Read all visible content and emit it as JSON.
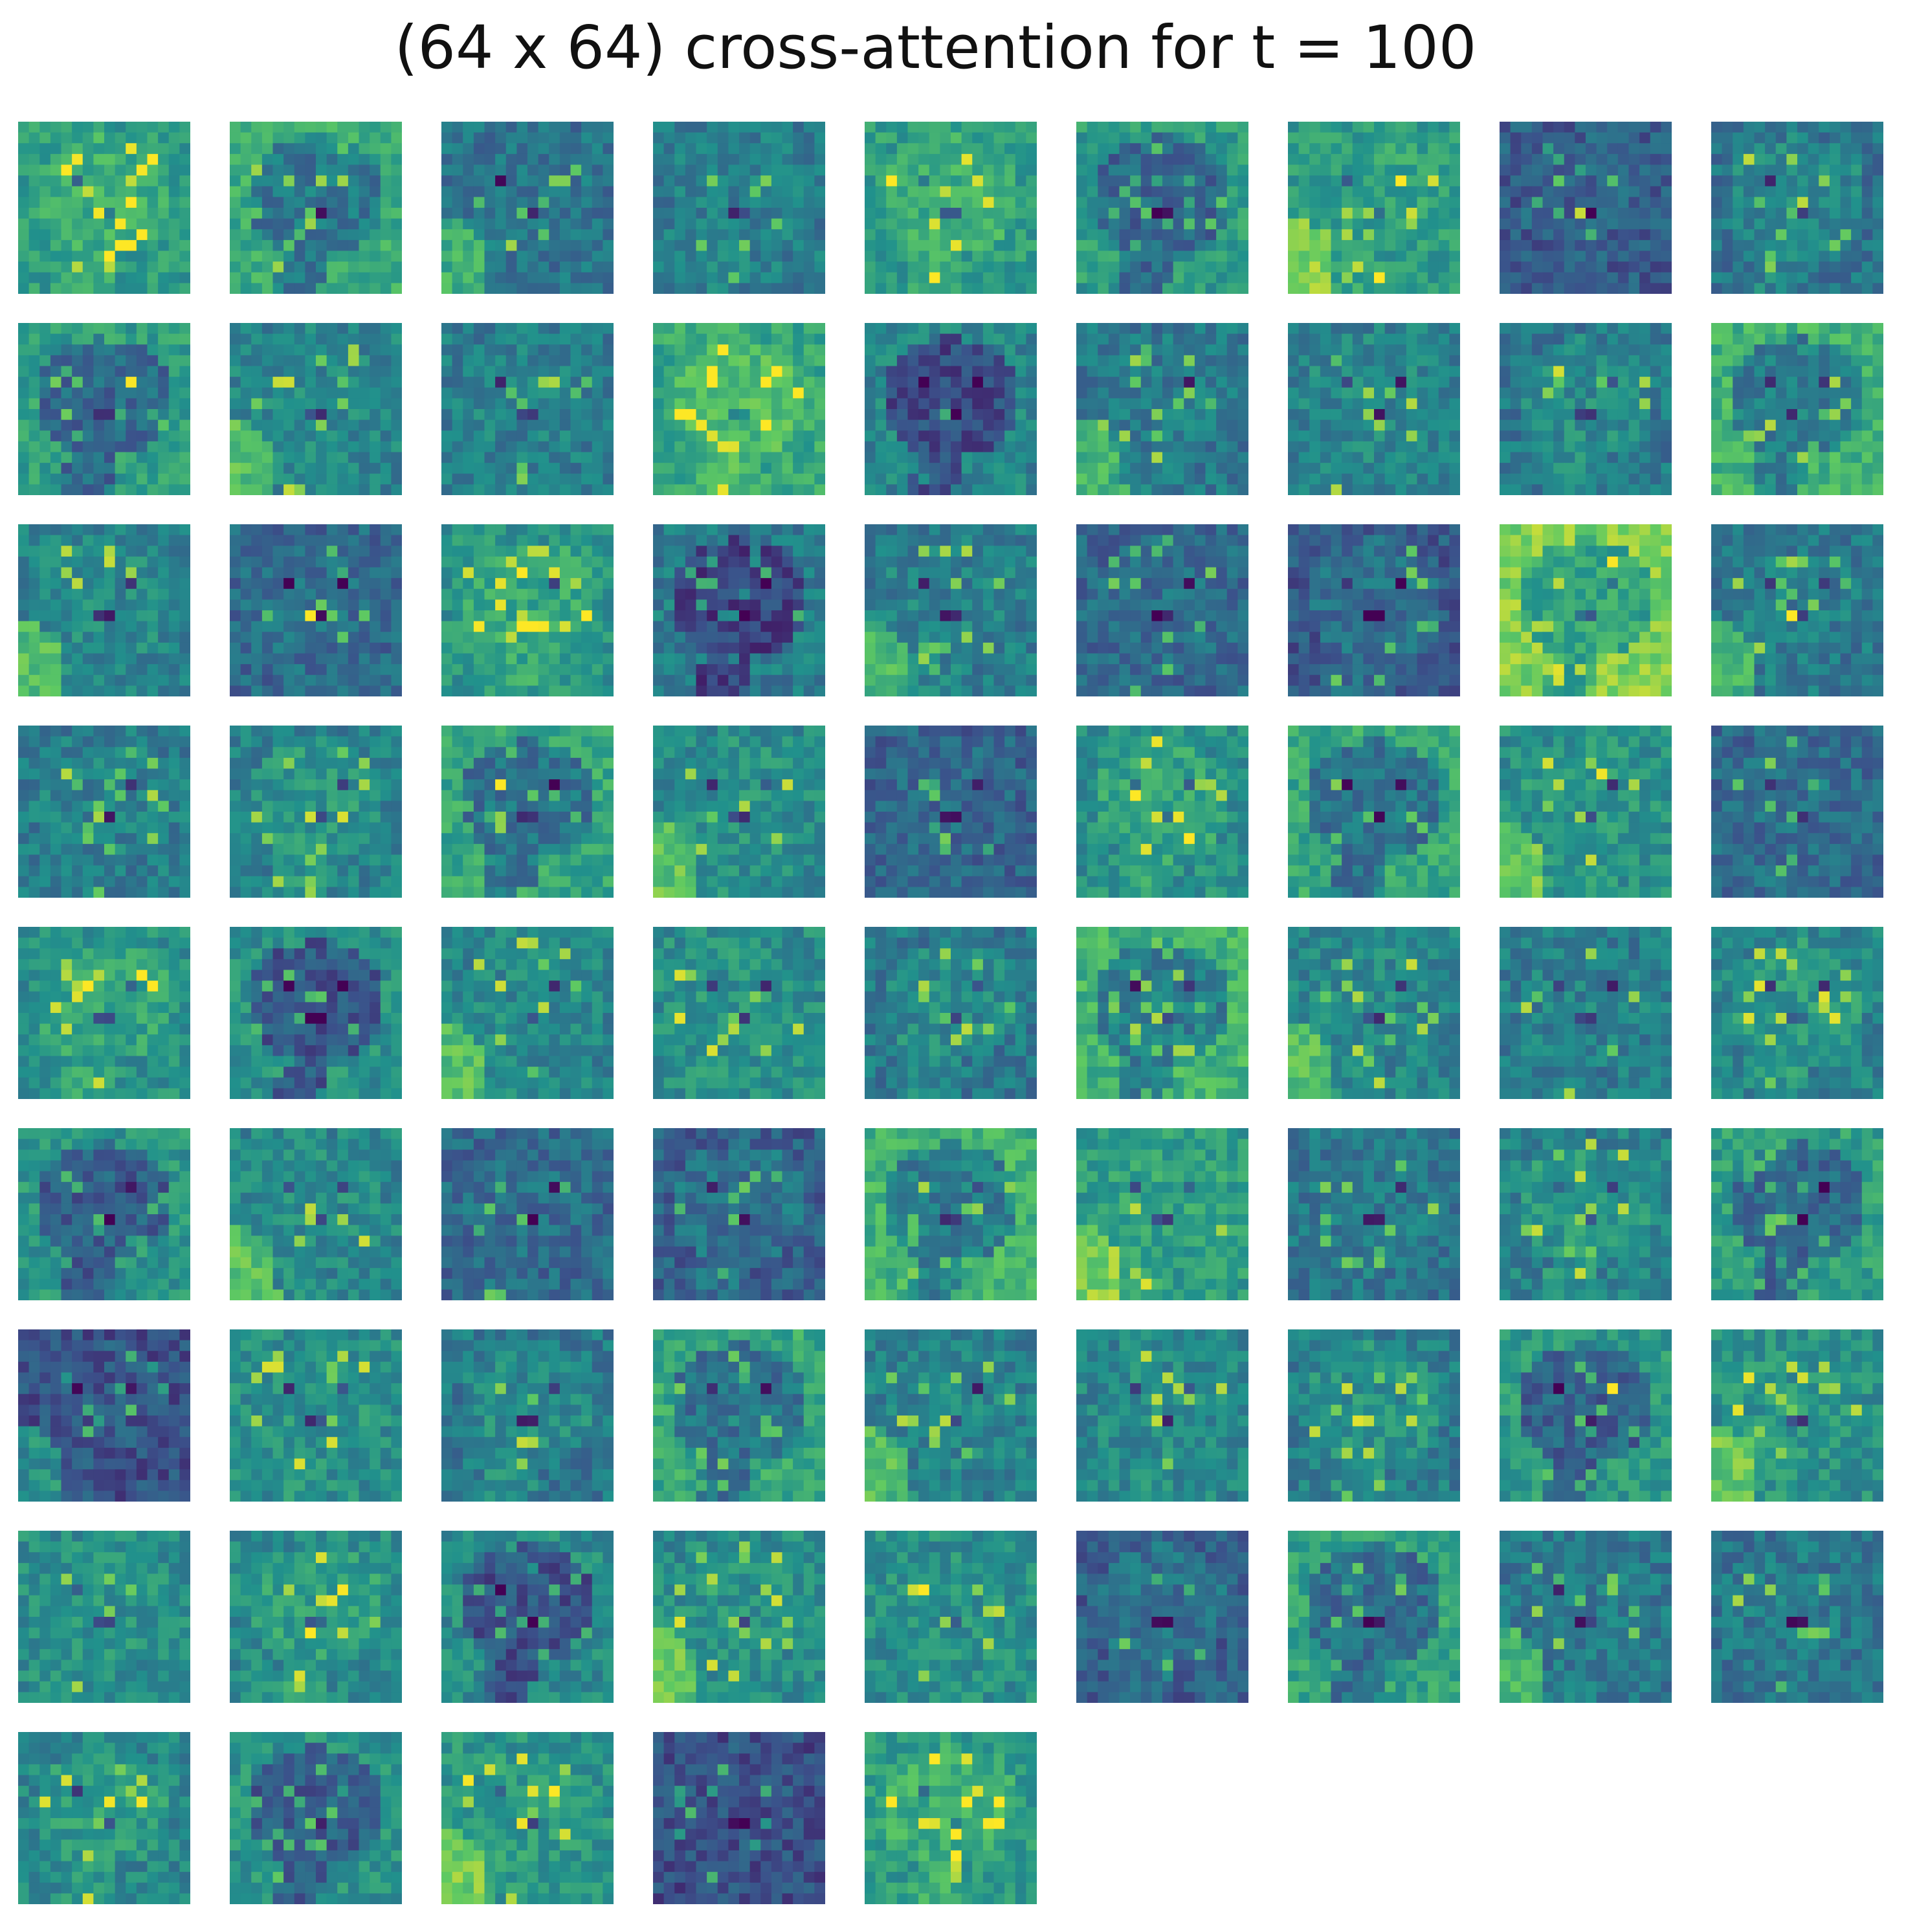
{
  "figure": {
    "title": "(64 x 64) cross-attention for t = 100"
  },
  "colormap": {
    "name": "viridis",
    "stops": [
      "#440154",
      "#3b528b",
      "#21918c",
      "#5ec962",
      "#fde725"
    ]
  },
  "panels": {
    "count": 77,
    "columns": 9,
    "rows": 9,
    "subject": "bear / big-cat face attention map",
    "brightness": [
      0.55,
      0.52,
      0.38,
      0.48,
      0.55,
      0.45,
      0.55,
      0.35,
      0.38,
      0.46,
      0.45,
      0.48,
      0.6,
      0.35,
      0.4,
      0.5,
      0.4,
      0.55,
      0.45,
      0.4,
      0.52,
      0.32,
      0.42,
      0.4,
      0.28,
      0.7,
      0.4,
      0.48,
      0.44,
      0.5,
      0.48,
      0.38,
      0.5,
      0.5,
      0.5,
      0.4,
      0.5,
      0.4,
      0.45,
      0.55,
      0.4,
      0.55,
      0.45,
      0.48,
      0.45,
      0.42,
      0.46,
      0.4,
      0.3,
      0.55,
      0.55,
      0.45,
      0.44,
      0.46,
      0.25,
      0.55,
      0.4,
      0.5,
      0.44,
      0.52,
      0.42,
      0.44,
      0.5,
      0.55,
      0.48,
      0.38,
      0.48,
      0.55,
      0.3,
      0.48,
      0.4,
      0.45,
      0.46,
      0.42,
      0.52,
      0.3,
      0.55
    ]
  }
}
